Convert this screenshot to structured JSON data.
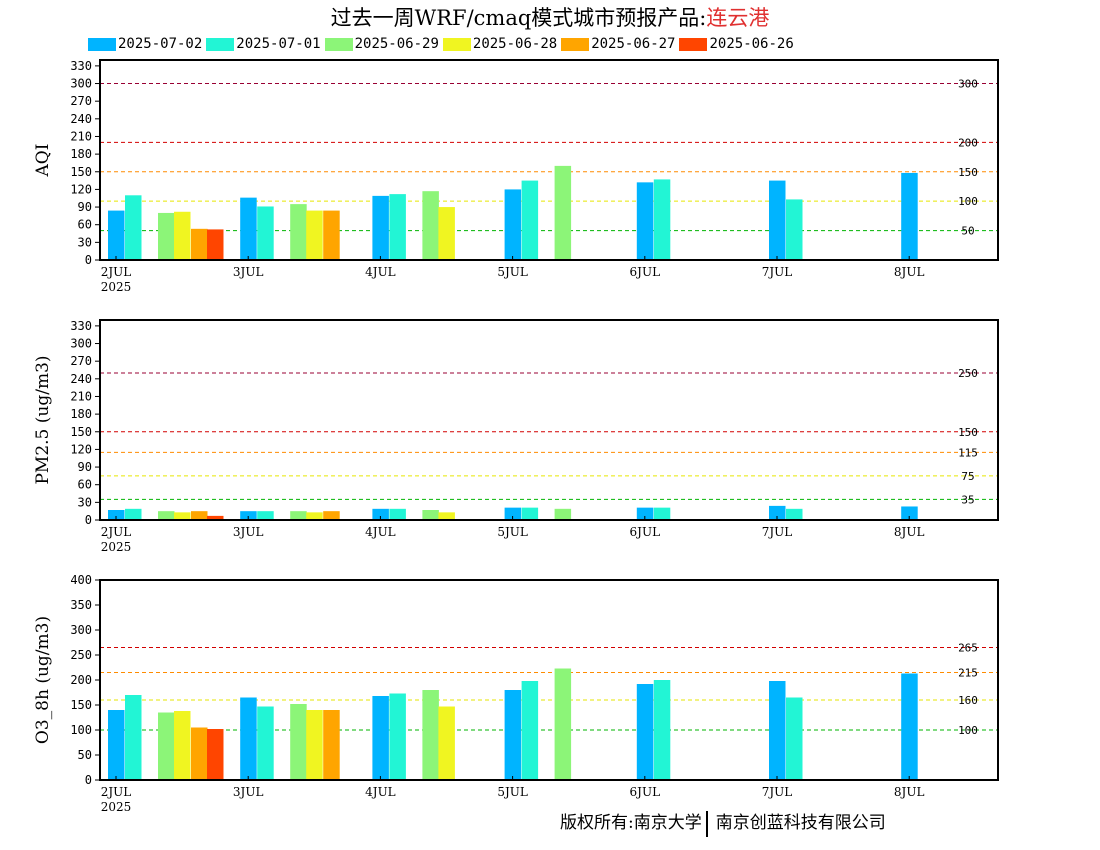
{
  "title": {
    "main": "过去一周WRF/cmaq模式城市预报产品:",
    "city": "连云港"
  },
  "legend": [
    {
      "label": "2025-07-02",
      "color": "#00b4ff"
    },
    {
      "label": "2025-07-01",
      "color": "#22f5d5"
    },
    {
      "label": "2025-06-29",
      "color": "#8cf578"
    },
    {
      "label": "2025-06-28",
      "color": "#f0f521"
    },
    {
      "label": "2025-06-27",
      "color": "#ffa500"
    },
    {
      "label": "2025-06-26",
      "color": "#ff4500"
    }
  ],
  "copyright": {
    "left": "版权所有:南京大学",
    "right": "南京创蓝科技有限公司"
  },
  "chart_data": [
    {
      "type": "bar",
      "ylabel": "AQI",
      "ylim": [
        0,
        340
      ],
      "yticks": [
        0,
        30,
        60,
        90,
        120,
        150,
        180,
        210,
        240,
        270,
        300,
        330
      ],
      "xlabels": [
        "2JUL",
        "3JUL",
        "4JUL",
        "5JUL",
        "6JUL",
        "7JUL",
        "8JUL"
      ],
      "year_label": "2025",
      "thresholds": [
        {
          "value": 50,
          "label": "50",
          "color": "#00b400"
        },
        {
          "value": 100,
          "label": "100",
          "color": "#e6e600"
        },
        {
          "value": 150,
          "label": "150",
          "color": "#ff8c00"
        },
        {
          "value": 200,
          "label": "200",
          "color": "#d20000"
        },
        {
          "value": 300,
          "label": "300",
          "color": "#990033"
        }
      ],
      "bars": [
        {
          "day": 0,
          "pos": 0,
          "series": 0,
          "value": 84
        },
        {
          "day": 0,
          "pos": 1,
          "series": 1,
          "value": 110
        },
        {
          "day": 0,
          "pos": 3,
          "series": 2,
          "value": 80
        },
        {
          "day": 0,
          "pos": 4,
          "series": 3,
          "value": 82
        },
        {
          "day": 0,
          "pos": 5,
          "series": 4,
          "value": 53
        },
        {
          "day": 0,
          "pos": 6,
          "series": 5,
          "value": 52
        },
        {
          "day": 1,
          "pos": 0,
          "series": 0,
          "value": 106
        },
        {
          "day": 1,
          "pos": 1,
          "series": 1,
          "value": 91
        },
        {
          "day": 1,
          "pos": 3,
          "series": 2,
          "value": 95
        },
        {
          "day": 1,
          "pos": 4,
          "series": 3,
          "value": 84
        },
        {
          "day": 1,
          "pos": 5,
          "series": 4,
          "value": 84
        },
        {
          "day": 2,
          "pos": 0,
          "series": 0,
          "value": 109
        },
        {
          "day": 2,
          "pos": 1,
          "series": 1,
          "value": 112
        },
        {
          "day": 2,
          "pos": 3,
          "series": 2,
          "value": 117
        },
        {
          "day": 2,
          "pos": 4,
          "series": 3,
          "value": 90
        },
        {
          "day": 3,
          "pos": 0,
          "series": 0,
          "value": 120
        },
        {
          "day": 3,
          "pos": 1,
          "series": 1,
          "value": 135
        },
        {
          "day": 3,
          "pos": 3,
          "series": 2,
          "value": 160
        },
        {
          "day": 4,
          "pos": 0,
          "series": 0,
          "value": 132
        },
        {
          "day": 4,
          "pos": 1,
          "series": 1,
          "value": 137
        },
        {
          "day": 5,
          "pos": 0,
          "series": 0,
          "value": 135
        },
        {
          "day": 5,
          "pos": 1,
          "series": 1,
          "value": 103
        },
        {
          "day": 6,
          "pos": 0,
          "series": 0,
          "value": 148
        }
      ]
    },
    {
      "type": "bar",
      "ylabel": "PM2.5 (ug/m3)",
      "ylim": [
        0,
        340
      ],
      "yticks": [
        0,
        30,
        60,
        90,
        120,
        150,
        180,
        210,
        240,
        270,
        300,
        330
      ],
      "xlabels": [
        "2JUL",
        "3JUL",
        "4JUL",
        "5JUL",
        "6JUL",
        "7JUL",
        "8JUL"
      ],
      "year_label": "2025",
      "thresholds": [
        {
          "value": 35,
          "label": "35",
          "color": "#00b400"
        },
        {
          "value": 75,
          "label": "75",
          "color": "#e6e600"
        },
        {
          "value": 115,
          "label": "115",
          "color": "#ff8c00"
        },
        {
          "value": 150,
          "label": "150",
          "color": "#d20000"
        },
        {
          "value": 250,
          "label": "250",
          "color": "#990033"
        }
      ],
      "bars": [
        {
          "day": 0,
          "pos": 0,
          "series": 0,
          "value": 17
        },
        {
          "day": 0,
          "pos": 1,
          "series": 1,
          "value": 19
        },
        {
          "day": 0,
          "pos": 3,
          "series": 2,
          "value": 15
        },
        {
          "day": 0,
          "pos": 4,
          "series": 3,
          "value": 13
        },
        {
          "day": 0,
          "pos": 5,
          "series": 4,
          "value": 15
        },
        {
          "day": 0,
          "pos": 6,
          "series": 5,
          "value": 7
        },
        {
          "day": 1,
          "pos": 0,
          "series": 0,
          "value": 15
        },
        {
          "day": 1,
          "pos": 1,
          "series": 1,
          "value": 15
        },
        {
          "day": 1,
          "pos": 3,
          "series": 2,
          "value": 15
        },
        {
          "day": 1,
          "pos": 4,
          "series": 3,
          "value": 13
        },
        {
          "day": 1,
          "pos": 5,
          "series": 4,
          "value": 15
        },
        {
          "day": 2,
          "pos": 0,
          "series": 0,
          "value": 19
        },
        {
          "day": 2,
          "pos": 1,
          "series": 1,
          "value": 19
        },
        {
          "day": 2,
          "pos": 3,
          "series": 2,
          "value": 17
        },
        {
          "day": 2,
          "pos": 4,
          "series": 3,
          "value": 13
        },
        {
          "day": 3,
          "pos": 0,
          "series": 0,
          "value": 21
        },
        {
          "day": 3,
          "pos": 1,
          "series": 1,
          "value": 21
        },
        {
          "day": 3,
          "pos": 3,
          "series": 2,
          "value": 19
        },
        {
          "day": 4,
          "pos": 0,
          "series": 0,
          "value": 21
        },
        {
          "day": 4,
          "pos": 1,
          "series": 1,
          "value": 21
        },
        {
          "day": 5,
          "pos": 0,
          "series": 0,
          "value": 24
        },
        {
          "day": 5,
          "pos": 1,
          "series": 1,
          "value": 19
        },
        {
          "day": 6,
          "pos": 0,
          "series": 0,
          "value": 23
        }
      ]
    },
    {
      "type": "bar",
      "ylabel": "O3_8h (ug/m3)",
      "ylim": [
        0,
        400
      ],
      "yticks": [
        0,
        50,
        100,
        150,
        200,
        250,
        300,
        350,
        400
      ],
      "xlabels": [
        "2JUL",
        "3JUL",
        "4JUL",
        "5JUL",
        "6JUL",
        "7JUL",
        "8JUL"
      ],
      "year_label": "2025",
      "thresholds": [
        {
          "value": 100,
          "label": "100",
          "color": "#00b400"
        },
        {
          "value": 160,
          "label": "160",
          "color": "#e6e600"
        },
        {
          "value": 215,
          "label": "215",
          "color": "#ff8c00"
        },
        {
          "value": 265,
          "label": "265",
          "color": "#d20000"
        }
      ],
      "bars": [
        {
          "day": 0,
          "pos": 0,
          "series": 0,
          "value": 140
        },
        {
          "day": 0,
          "pos": 1,
          "series": 1,
          "value": 170
        },
        {
          "day": 0,
          "pos": 3,
          "series": 2,
          "value": 135
        },
        {
          "day": 0,
          "pos": 4,
          "series": 3,
          "value": 138
        },
        {
          "day": 0,
          "pos": 5,
          "series": 4,
          "value": 105
        },
        {
          "day": 0,
          "pos": 6,
          "series": 5,
          "value": 102
        },
        {
          "day": 1,
          "pos": 0,
          "series": 0,
          "value": 165
        },
        {
          "day": 1,
          "pos": 1,
          "series": 1,
          "value": 147
        },
        {
          "day": 1,
          "pos": 3,
          "series": 2,
          "value": 152
        },
        {
          "day": 1,
          "pos": 4,
          "series": 3,
          "value": 140
        },
        {
          "day": 1,
          "pos": 5,
          "series": 4,
          "value": 140
        },
        {
          "day": 2,
          "pos": 0,
          "series": 0,
          "value": 168
        },
        {
          "day": 2,
          "pos": 1,
          "series": 1,
          "value": 173
        },
        {
          "day": 2,
          "pos": 3,
          "series": 2,
          "value": 180
        },
        {
          "day": 2,
          "pos": 4,
          "series": 3,
          "value": 147
        },
        {
          "day": 3,
          "pos": 0,
          "series": 0,
          "value": 180
        },
        {
          "day": 3,
          "pos": 1,
          "series": 1,
          "value": 198
        },
        {
          "day": 3,
          "pos": 3,
          "series": 2,
          "value": 223
        },
        {
          "day": 4,
          "pos": 0,
          "series": 0,
          "value": 192
        },
        {
          "day": 4,
          "pos": 1,
          "series": 1,
          "value": 200
        },
        {
          "day": 5,
          "pos": 0,
          "series": 0,
          "value": 198
        },
        {
          "day": 5,
          "pos": 1,
          "series": 1,
          "value": 165
        },
        {
          "day": 6,
          "pos": 0,
          "series": 0,
          "value": 213
        }
      ]
    }
  ]
}
